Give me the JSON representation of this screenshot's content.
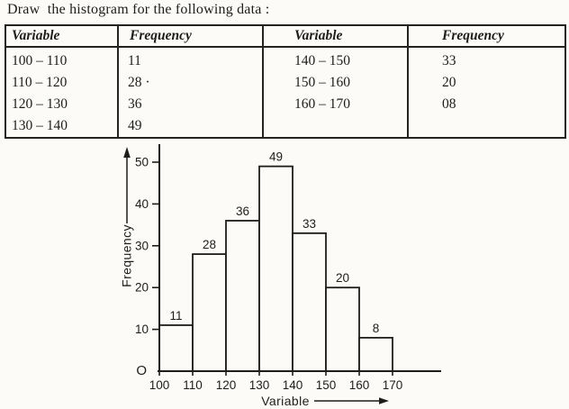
{
  "page": {
    "title": "Draw  the histogram for the following data :",
    "background": "#fcfbf7",
    "ink": "#1e1d1b"
  },
  "table": {
    "headers": [
      "Variable",
      "Frequency",
      "Variable",
      "Frequency"
    ],
    "left_rows": [
      {
        "variable": "100 – 110",
        "frequency": "11"
      },
      {
        "variable": "110 – 120",
        "frequency": "28  ·"
      },
      {
        "variable": "120 – 130",
        "frequency": "36"
      },
      {
        "variable": "130 – 140",
        "frequency": "49"
      }
    ],
    "right_rows": [
      {
        "variable": "140 – 150",
        "frequency": "33"
      },
      {
        "variable": "150 – 160",
        "frequency": "20"
      },
      {
        "variable": "160 – 170",
        "frequency": "08"
      },
      {
        "variable": "",
        "frequency": ""
      }
    ]
  },
  "chart_data": {
    "type": "bar",
    "title": "",
    "xlabel": "Variable",
    "ylabel": "Frequency",
    "categories": [
      "100–110",
      "110–120",
      "120–130",
      "130–140",
      "140–150",
      "150–160",
      "160–170"
    ],
    "bin_edges": [
      100,
      110,
      120,
      130,
      140,
      150,
      160,
      170
    ],
    "values": [
      11,
      28,
      36,
      49,
      33,
      20,
      8
    ],
    "bar_labels": [
      "11",
      "28",
      "36",
      "49",
      "33",
      "20",
      "8"
    ],
    "x_ticks": [
      "100",
      "110",
      "120",
      "130",
      "140",
      "150",
      "160",
      "170"
    ],
    "y_ticks": [
      "10",
      "20",
      "30",
      "40",
      "50"
    ],
    "origin_label": "O",
    "xlim": [
      100,
      184
    ],
    "ylim": [
      0,
      54
    ],
    "grid": false,
    "legend": false,
    "bar_fill": "#fcfbf7",
    "bar_stroke": "#1e1d1b"
  }
}
